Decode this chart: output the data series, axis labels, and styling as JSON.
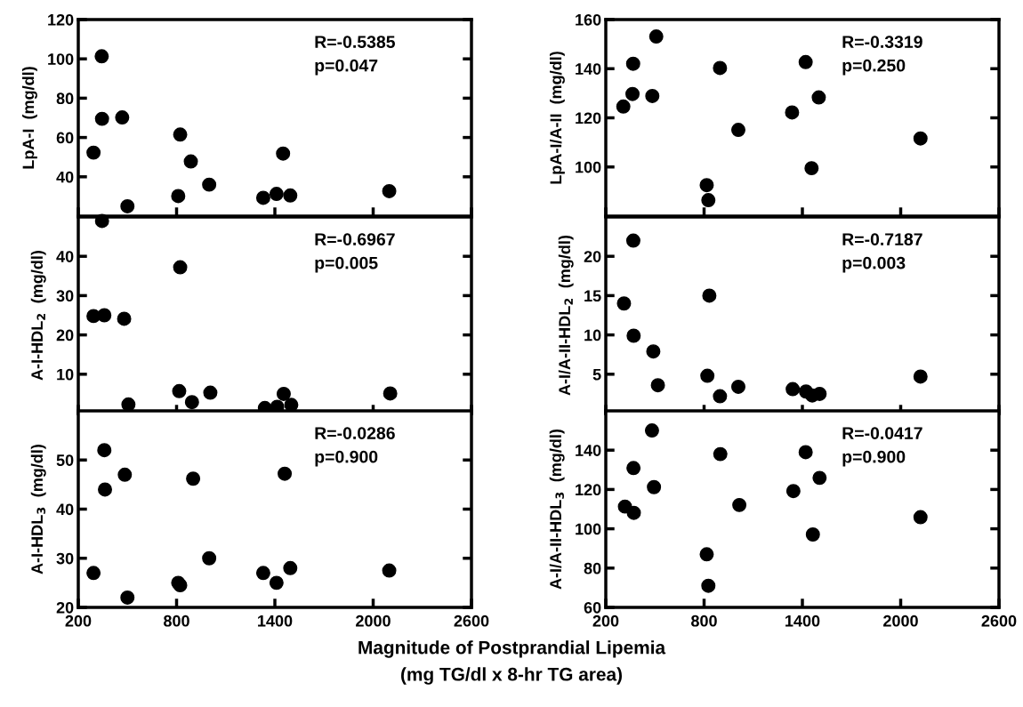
{
  "chart_data": [
    {
      "type": "scatter",
      "ylabel": "LpA-I  (mg/dl)",
      "annotations": [
        "R=-0.5385\np=0.047"
      ],
      "marker": "circle",
      "grid": false,
      "tick_labels": "y",
      "xlim": [
        200,
        2600
      ],
      "xticks": [
        {
          "value": 200,
          "label": null
        },
        {
          "value": 800,
          "label": null
        },
        {
          "value": 1400,
          "label": null
        },
        {
          "value": 2000,
          "label": null
        },
        {
          "value": 2600,
          "label": null
        }
      ],
      "ylim": [
        20,
        120
      ],
      "yticks": [
        40,
        60,
        80,
        100,
        120
      ],
      "series": [
        {
          "color": "#000000",
          "x": [
            293,
            343,
            345,
            468,
            500,
            810,
            822,
            887,
            999,
            1329,
            1410,
            1450,
            1494,
            2098
          ],
          "values": [
            52.3,
            101.3,
            69.5,
            70.2,
            25,
            30.2,
            61.5,
            47.8,
            36,
            29.3,
            31.3,
            51.8,
            30.5,
            32.7
          ]
        }
      ]
    },
    {
      "type": "scatter",
      "ylabel": "LpA-I/A-II  (mg/dl)",
      "annotations": [
        "R=-0.3319\np=0.250"
      ],
      "marker": "circle",
      "grid": false,
      "tick_labels": "y",
      "xlim": [
        200,
        2600
      ],
      "xticks": [
        {
          "value": 200,
          "label": null
        },
        {
          "value": 800,
          "label": null
        },
        {
          "value": 1400,
          "label": null
        },
        {
          "value": 2000,
          "label": null
        },
        {
          "value": 2600,
          "label": null
        }
      ],
      "ylim": [
        80,
        160
      ],
      "yticks": [
        100,
        120,
        140,
        160
      ],
      "series": [
        {
          "color": "#000000",
          "x": [
            307,
            363,
            367,
            484,
            508,
            816,
            826,
            897,
            1009,
            1337,
            1420,
            1456,
            1500,
            2121
          ],
          "values": [
            124.6,
            129.7,
            142,
            128.9,
            153.1,
            92.6,
            86.5,
            140.3,
            115.1,
            122.2,
            142.7,
            99.5,
            128.3,
            111.6
          ]
        }
      ]
    },
    {
      "type": "scatter",
      "ylabel": "A-I-HDL$_{2}$  (mg/dl)",
      "annotations": [
        "R=-0.6967\np=0.005"
      ],
      "marker": "circle",
      "grid": false,
      "tick_labels": "y",
      "xlim": [
        200,
        2600
      ],
      "xticks": [
        {
          "value": 200,
          "label": null
        },
        {
          "value": 800,
          "label": null
        },
        {
          "value": 1400,
          "label": null
        },
        {
          "value": 2000,
          "label": null
        },
        {
          "value": 2600,
          "label": null
        }
      ],
      "ylim": [
        0,
        50
      ],
      "yticks": [
        10,
        20,
        30,
        40
      ],
      "series": [
        {
          "color": "#000000",
          "x": [
            293,
            359,
            345,
            480,
            506,
            816,
            822,
            894,
            1006,
            1339,
            1414,
            1454,
            1500,
            2104
          ],
          "values": [
            24.8,
            25,
            49,
            24.1,
            2.3,
            5.7,
            37.2,
            2.9,
            5.3,
            1.4,
            1.7,
            5,
            2.2,
            5.1
          ]
        }
      ]
    },
    {
      "type": "scatter",
      "ylabel": "A-I/A-II-HDL$_{2}$  (mg/dl)",
      "annotations": [
        "R=-0.7187\np=0.003"
      ],
      "marker": "circle",
      "grid": false,
      "tick_labels": "y",
      "xlim": [
        200,
        2600
      ],
      "xticks": [
        {
          "value": 200,
          "label": null
        },
        {
          "value": 800,
          "label": null
        },
        {
          "value": 1400,
          "label": null
        },
        {
          "value": 2000,
          "label": null
        },
        {
          "value": 2600,
          "label": null
        }
      ],
      "ylim": [
        0,
        25
      ],
      "yticks": [
        5,
        10,
        15,
        20
      ],
      "series": [
        {
          "color": "#000000",
          "x": [
            368,
            311,
            370,
            490,
            518,
            820,
            832,
            897,
            1009,
            1341,
            1422,
            1460,
            1505,
            2121
          ],
          "values": [
            22,
            14,
            9.9,
            7.9,
            3.6,
            4.8,
            15,
            2.2,
            3.4,
            3.1,
            2.8,
            2.3,
            2.5,
            4.7
          ]
        }
      ]
    },
    {
      "type": "scatter",
      "ylabel": "A-I-HDL$_{3}$  (mg/dl)",
      "annotations": [
        "R=-0.0286\np=0.900"
      ],
      "marker": "circle",
      "grid": false,
      "xlim": [
        200,
        2600
      ],
      "xticks": [
        200,
        800,
        1400,
        2000,
        2600
      ],
      "ylim": [
        20,
        60
      ],
      "yticks": [
        20,
        30,
        40,
        50
      ],
      "series": [
        {
          "color": "#000000",
          "x": [
            293,
            359,
            363,
            484,
            500,
            810,
            822,
            901,
            999,
            1329,
            1410,
            1460,
            1494,
            2098
          ],
          "values": [
            27,
            52,
            44,
            47,
            22,
            25,
            24.5,
            46.2,
            30,
            27,
            25,
            47.2,
            28,
            27.5
          ]
        }
      ]
    },
    {
      "type": "scatter",
      "ylabel": "A-I/A-II-HDL$_{3}$  (mg/dl)",
      "xlabel": "Magnitude of Postprandial Lipemia\n(mg TG/dl x 8-hr TG area)",
      "annotations": [
        "R=-0.0417\np=0.900"
      ],
      "marker": "circle",
      "grid": false,
      "xlim": [
        200,
        2600
      ],
      "xticks": [
        200,
        800,
        1400,
        2000,
        2600
      ],
      "ylim": [
        60,
        160
      ],
      "yticks": [
        60,
        80,
        100,
        120,
        140
      ],
      "series": [
        {
          "color": "#000000",
          "x": [
            317,
            369,
            371,
            494,
            482,
            816,
            826,
            899,
            1015,
            1345,
            1420,
            1464,
            1505,
            2121
          ],
          "values": [
            111.3,
            130.9,
            108.1,
            121.2,
            150,
            87,
            71,
            138,
            112.1,
            119.2,
            139,
            97.1,
            125.9,
            105.9
          ]
        }
      ]
    }
  ]
}
